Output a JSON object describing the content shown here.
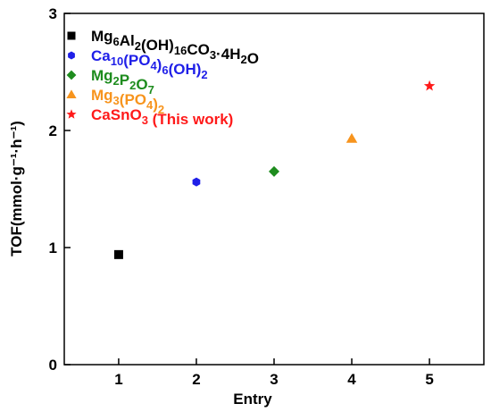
{
  "chart_data": {
    "type": "scatter",
    "xlabel": "Entry",
    "ylabel": "TOF(mmol·g⁻¹·h⁻¹)",
    "xlim": [
      0.3,
      5.7
    ],
    "ylim": [
      0,
      3
    ],
    "xticks": [
      1,
      2,
      3,
      4,
      5
    ],
    "yticks": [
      0,
      1,
      2,
      3
    ],
    "grid": false,
    "legend_position": "top-left",
    "series": [
      {
        "name": "Mg6Al2(OH)16CO3·4H2O",
        "marker": "square",
        "color": "#000000",
        "x": [
          1
        ],
        "y": [
          0.94
        ]
      },
      {
        "name": "Ca10(PO4)6(OH)2",
        "marker": "hexagon",
        "color": "#1f1fe8",
        "x": [
          2
        ],
        "y": [
          1.56
        ]
      },
      {
        "name": "Mg2P2O7",
        "marker": "diamond",
        "color": "#1e8c1e",
        "x": [
          3
        ],
        "y": [
          1.65
        ]
      },
      {
        "name": "Mg3(PO4)2",
        "marker": "triangle",
        "color": "#f7941d",
        "x": [
          4
        ],
        "y": [
          1.93
        ]
      },
      {
        "name": "CaSnO3 (This work)",
        "marker": "star",
        "color": "#ff1a1a",
        "x": [
          5
        ],
        "y": [
          2.38
        ]
      }
    ]
  }
}
